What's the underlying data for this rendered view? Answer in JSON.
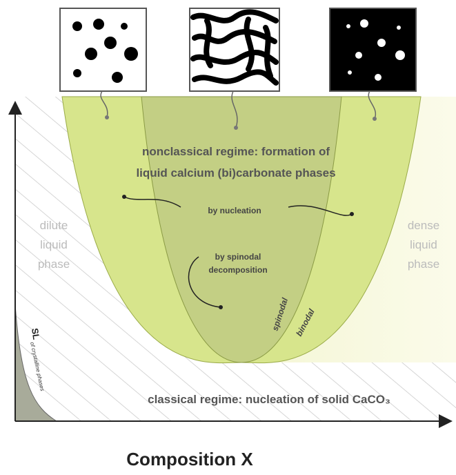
{
  "labels": {
    "nonclassical": [
      "nonclassical regime: formation of",
      "liquid calcium (bi)carbonate phases"
    ],
    "by_nucleation": "by nucleation",
    "by_spinodal": [
      "by spinodal",
      "decomposition"
    ],
    "dilute": [
      "dilute",
      "liquid",
      "phase"
    ],
    "dense": [
      "dense",
      "liquid",
      "phase"
    ],
    "spinodal": "spinodal",
    "binodal": "binodal",
    "solubility_limit": "SL",
    "solubility_limit_note": "of crystalline phases",
    "classical": "classical regime: nucleation of solid CaCO₃",
    "x_axis": "Composition X"
  }
}
